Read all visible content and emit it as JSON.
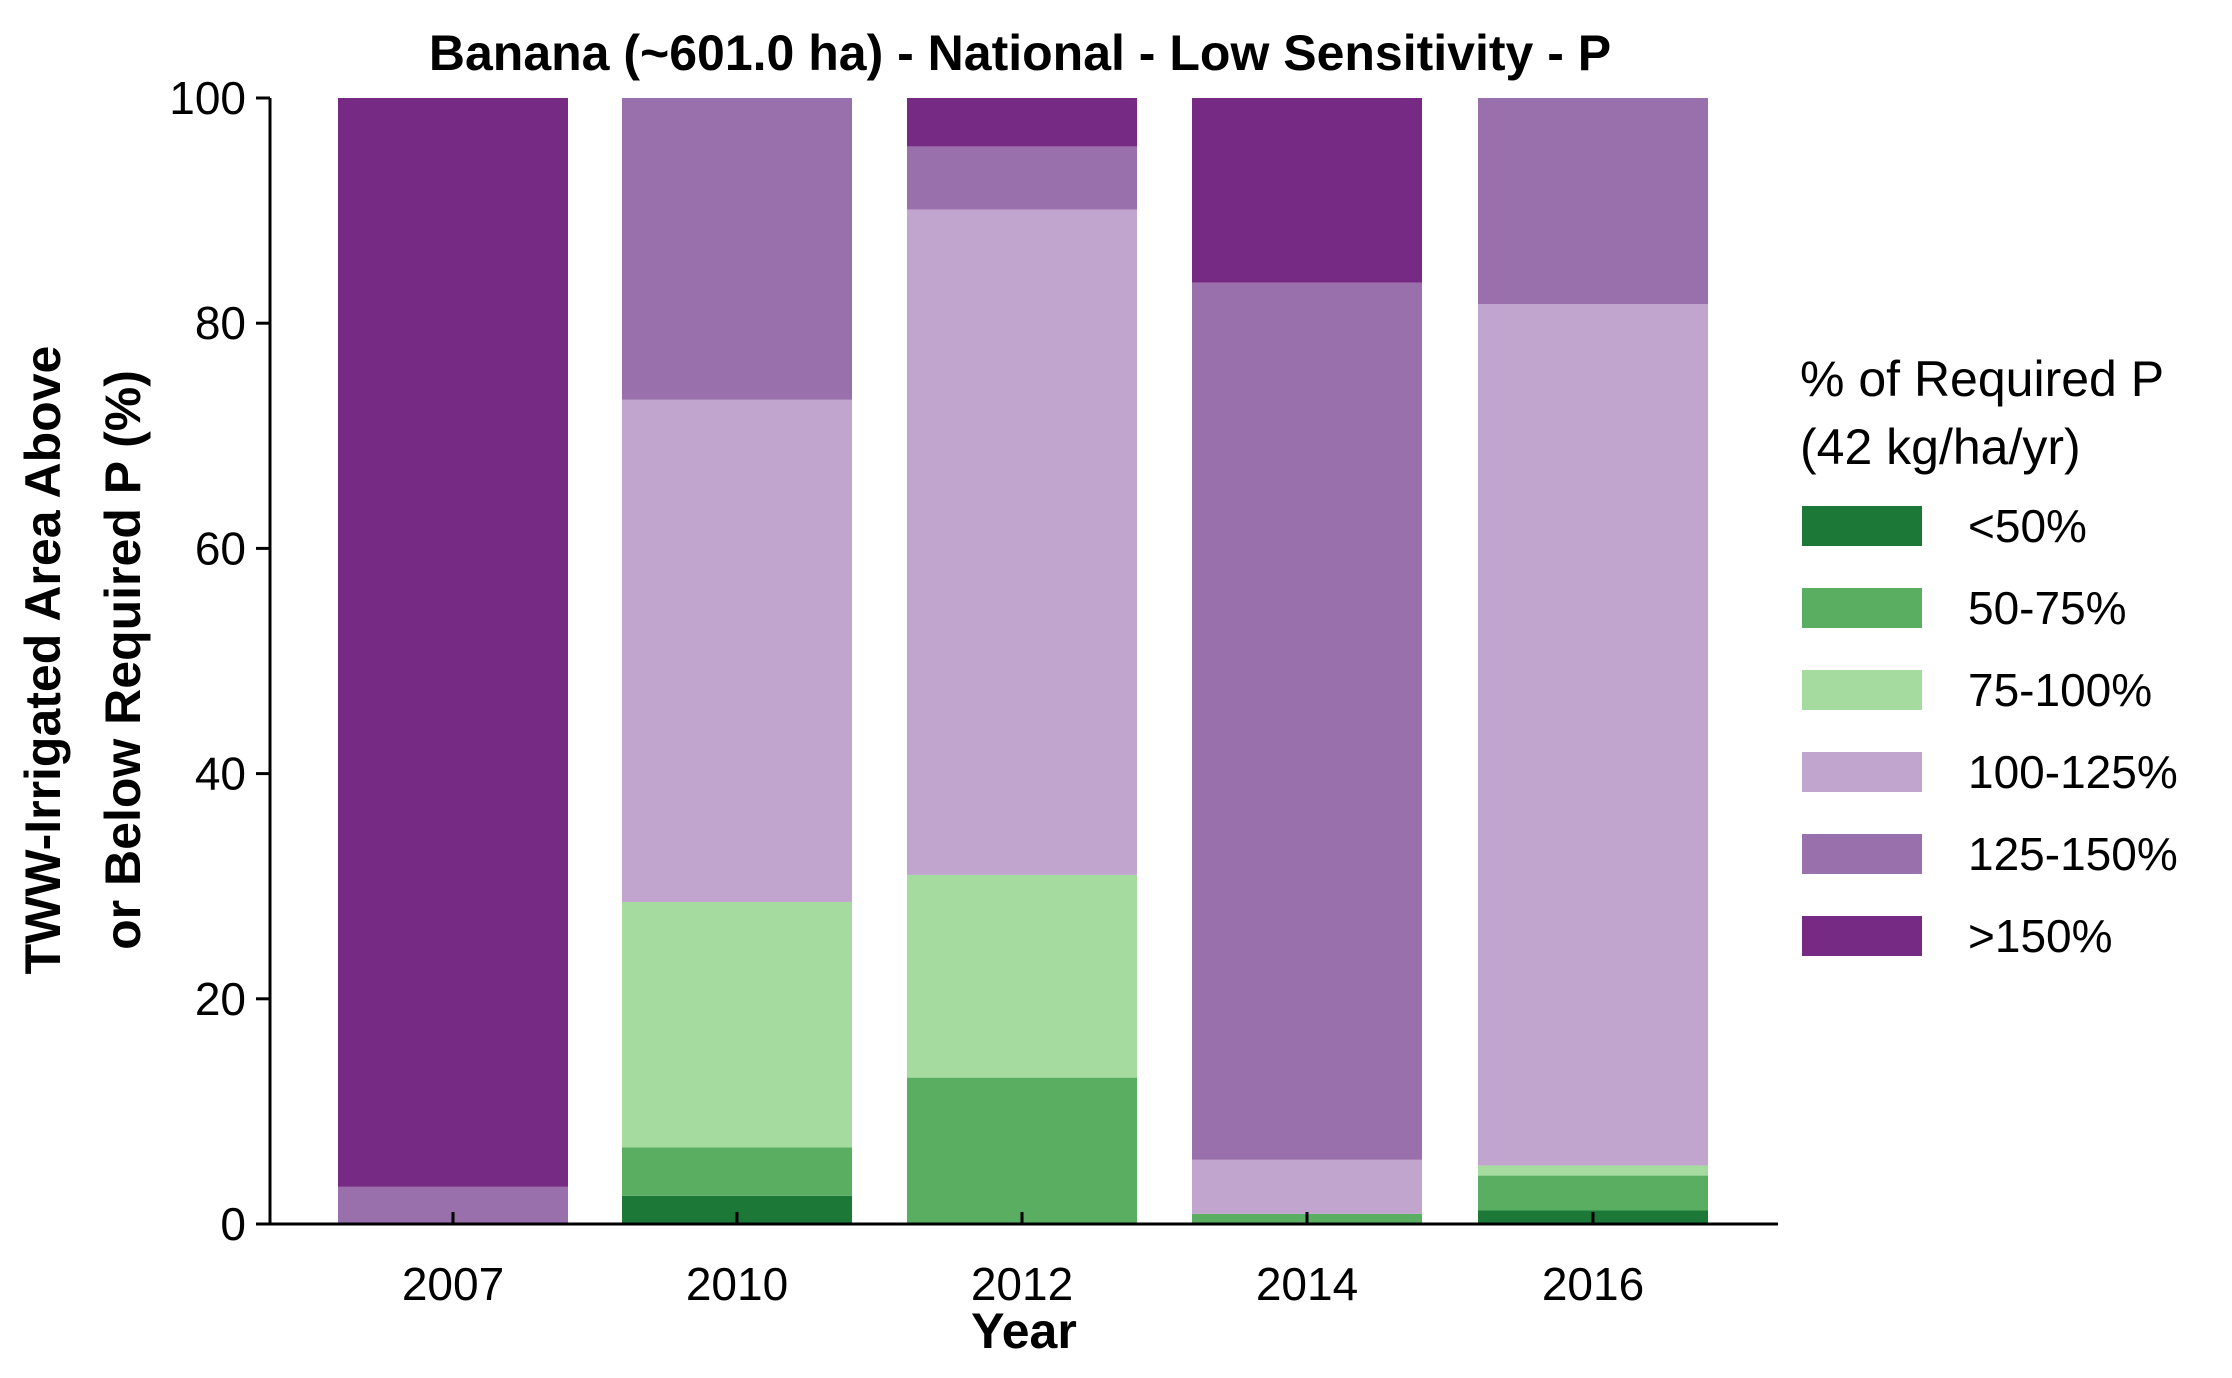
{
  "chart_data": {
    "type": "bar",
    "stacked": true,
    "title": "Banana (~601.0 ha) - National - Low Sensitivity - P",
    "xlabel": "Year",
    "ylabel_lines": [
      "TWW-Irrigated Area Above",
      "or Below Required P (%)"
    ],
    "ylim": [
      0,
      100
    ],
    "yticks": [
      0,
      20,
      40,
      60,
      80,
      100
    ],
    "grid": false,
    "legend_position": "right",
    "categories": [
      "2007",
      "2010",
      "2012",
      "2014",
      "2016"
    ],
    "legend": {
      "title_lines": [
        "% of Required P",
        "(42 kg/ha/yr)"
      ]
    },
    "series": [
      {
        "name": "<50%",
        "color": "#1b7837",
        "values": [
          0.0,
          2.5,
          0.0,
          0.0,
          1.2
        ]
      },
      {
        "name": "50-75%",
        "color": "#5aae61",
        "values": [
          0.0,
          4.3,
          13.0,
          0.9,
          3.1
        ]
      },
      {
        "name": "75-100%",
        "color": "#a6dba0",
        "values": [
          0.0,
          21.8,
          18.0,
          0.0,
          0.9
        ]
      },
      {
        "name": "100-125%",
        "color": "#c2a5cf",
        "values": [
          0.0,
          44.6,
          59.1,
          4.8,
          76.5
        ]
      },
      {
        "name": "125-150%",
        "color": "#9970ab",
        "values": [
          3.3,
          26.8,
          5.6,
          77.9,
          18.3
        ]
      },
      {
        "name": ">150%",
        "color": "#762a83",
        "values": [
          96.7,
          0.0,
          4.3,
          16.4,
          0.0
        ]
      }
    ]
  }
}
